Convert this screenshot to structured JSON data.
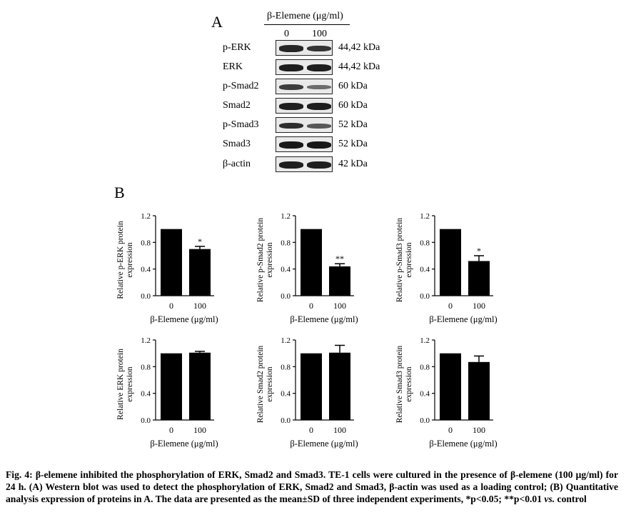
{
  "panel_a": {
    "letter": "A",
    "treatment_title": "β-Elemene (μg/ml)",
    "lanes": [
      "0",
      "100"
    ],
    "blots": [
      {
        "name": "p-ERK",
        "kda": "44,42 kDa",
        "intensity": [
          0.85,
          0.75
        ]
      },
      {
        "name": "ERK",
        "kda": "44,42 kDa",
        "intensity": [
          0.9,
          0.9
        ]
      },
      {
        "name": "p-Smad2",
        "kda": "60 kDa",
        "intensity": [
          0.7,
          0.35
        ]
      },
      {
        "name": "Smad2",
        "kda": "60 kDa",
        "intensity": [
          0.9,
          0.9
        ]
      },
      {
        "name": "p-Smad3",
        "kda": "52 kDa",
        "intensity": [
          0.8,
          0.5
        ]
      },
      {
        "name": "Smad3",
        "kda": "52 kDa",
        "intensity": [
          0.95,
          0.95
        ]
      },
      {
        "name": "β-actin",
        "kda": "42 kDa",
        "intensity": [
          0.9,
          0.9
        ]
      }
    ]
  },
  "panel_b": {
    "letter": "B"
  },
  "chart_data": [
    {
      "type": "bar",
      "categories": [
        "0",
        "100"
      ],
      "values": [
        1.0,
        0.7
      ],
      "errors": [
        0,
        0.04
      ],
      "significance": [
        "",
        "*"
      ],
      "ylabel": [
        "Relative p-ERK protein",
        "expression"
      ],
      "xlabel": "β-Elemene (μg/ml)",
      "ylim": [
        0,
        1.2
      ],
      "yticks": [
        "0.0",
        "0.4",
        "0.8",
        "1.2"
      ]
    },
    {
      "type": "bar",
      "categories": [
        "0",
        "100"
      ],
      "values": [
        1.0,
        0.44
      ],
      "errors": [
        0,
        0.04
      ],
      "significance": [
        "",
        "**"
      ],
      "ylabel": [
        "Relative p-Smad2 protein",
        "expression"
      ],
      "xlabel": "β-Elemene (μg/ml)",
      "ylim": [
        0,
        1.2
      ],
      "yticks": [
        "0.0",
        "0.4",
        "0.8",
        "1.2"
      ]
    },
    {
      "type": "bar",
      "categories": [
        "0",
        "100"
      ],
      "values": [
        1.0,
        0.52
      ],
      "errors": [
        0,
        0.08
      ],
      "significance": [
        "",
        "*"
      ],
      "ylabel": [
        "Relative p-Smad3 protein",
        "expression"
      ],
      "xlabel": "β-Elemene (μg/ml)",
      "ylim": [
        0,
        1.2
      ],
      "yticks": [
        "0.0",
        "0.4",
        "0.8",
        "1.2"
      ]
    },
    {
      "type": "bar",
      "categories": [
        "0",
        "100"
      ],
      "values": [
        1.0,
        1.01
      ],
      "errors": [
        0,
        0.02
      ],
      "significance": [
        "",
        ""
      ],
      "ylabel": [
        "Relative ERK protein",
        "expression"
      ],
      "xlabel": "β-Elemene (μg/ml)",
      "ylim": [
        0,
        1.2
      ],
      "yticks": [
        "0.0",
        "0.4",
        "0.8",
        "1.2"
      ]
    },
    {
      "type": "bar",
      "categories": [
        "0",
        "100"
      ],
      "values": [
        1.0,
        1.01
      ],
      "errors": [
        0,
        0.11
      ],
      "significance": [
        "",
        ""
      ],
      "ylabel": [
        "Relative Smad2 protein",
        "expression"
      ],
      "xlabel": "β-Elemene (μg/ml)",
      "ylim": [
        0,
        1.2
      ],
      "yticks": [
        "0.0",
        "0.4",
        "0.8",
        "1.2"
      ]
    },
    {
      "type": "bar",
      "categories": [
        "0",
        "100"
      ],
      "values": [
        1.0,
        0.87
      ],
      "errors": [
        0,
        0.09
      ],
      "significance": [
        "",
        ""
      ],
      "ylabel": [
        "Relative Smad3 protein",
        "expression"
      ],
      "xlabel": "β-Elemene (μg/ml)",
      "ylim": [
        0,
        1.2
      ],
      "yticks": [
        "0.0",
        "0.4",
        "0.8",
        "1.2"
      ]
    }
  ],
  "caption": {
    "lead": "Fig. 4: β-elemene inhibited the phosphorylation of ERK, Smad2 and Smad3. TE-1 cells were cultured in the presence of β-elemene (100 μg/ml) for 24 h. (A) Western blot was used to detect the phosphorylation of ERK, Smad2 and Smad3, β-actin was used as a loading control; (B) Quantitative analysis expression of proteins in A. The data are presented as the mean±SD of three independent experiments, *p<0.05; **p<0.01 ",
    "vs": "vs.",
    "tail": " control"
  }
}
